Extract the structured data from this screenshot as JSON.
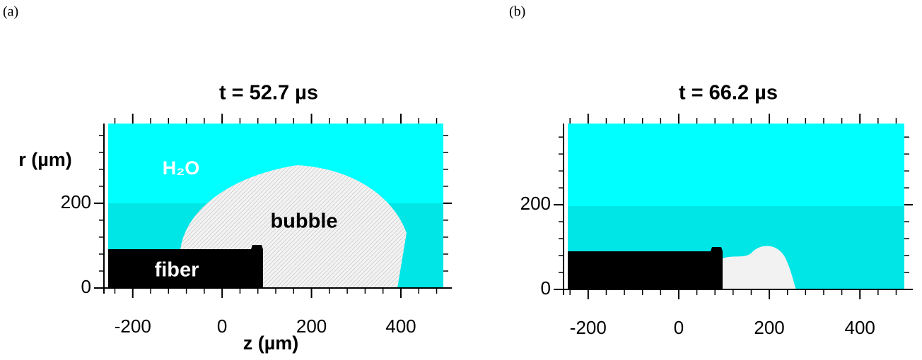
{
  "chart_data": [
    {
      "type": "field",
      "panel_label": "(a)",
      "title": "t = 52.7 µs",
      "ylabel": "r (µm)",
      "xlabel": "z (µm)",
      "annotations": [
        "H₂O",
        "bubble",
        "fiber"
      ],
      "xlim": [
        -255,
        495
      ],
      "xticks": [
        -200,
        0,
        200,
        400
      ],
      "ylim": [
        0,
        388
      ],
      "yticks": [
        0,
        200
      ],
      "color": "#00ffff",
      "grid": false
    },
    {
      "type": "field",
      "panel_label": "(b)",
      "title": "t = 66.2 µs",
      "xlim": [
        -245,
        498
      ],
      "xticks": [
        -200,
        0,
        200,
        400
      ],
      "ylim": [
        0,
        392
      ],
      "yticks": [
        0,
        200
      ],
      "color": "#00ffff",
      "grid": false
    }
  ]
}
